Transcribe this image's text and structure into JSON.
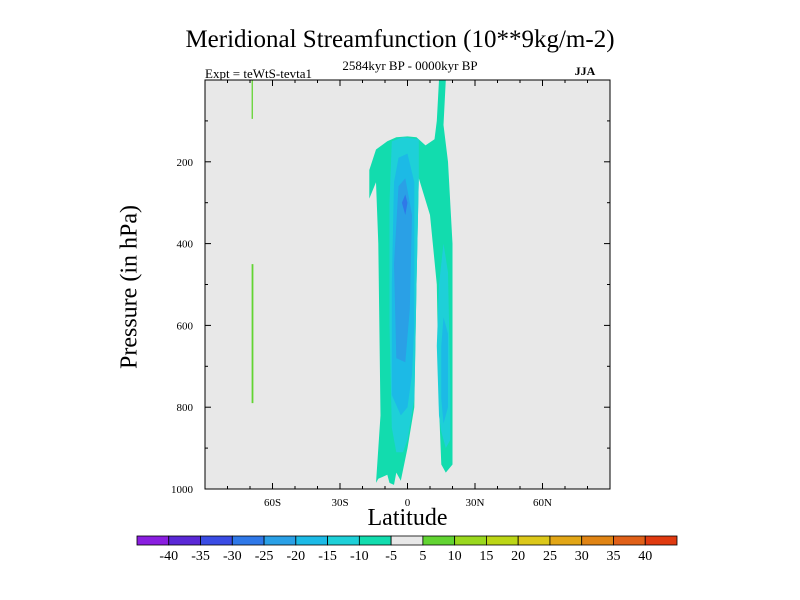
{
  "chart_data": {
    "type": "filled-contour",
    "title": "Meridional Streamfunction (10**9kg/m-2)",
    "subtitle_left": "Expt = teWtS-tevta1",
    "subtitle_center": "2584kyr BP - 0000kyr BP",
    "subtitle_right": "JJA",
    "xlabel": "Latitude",
    "ylabel": "Pressure (in hPa)",
    "xlim": [
      -90,
      90
    ],
    "ylim": [
      1000,
      0
    ],
    "xticks": [
      {
        "value": -60,
        "label": "60S"
      },
      {
        "value": -30,
        "label": "30S"
      },
      {
        "value": 0,
        "label": "0"
      },
      {
        "value": 30,
        "label": "30N"
      },
      {
        "value": 60,
        "label": "60N"
      }
    ],
    "yticks": [
      {
        "value": 200,
        "label": "200"
      },
      {
        "value": 400,
        "label": "400"
      },
      {
        "value": 600,
        "label": "600"
      },
      {
        "value": 800,
        "label": "800"
      },
      {
        "value": 1000,
        "label": "1000"
      }
    ],
    "background_color": "#e8e8e8",
    "colorbar": {
      "labels": [
        "-40",
        "-35",
        "-30",
        "-25",
        "-20",
        "-15",
        "-10",
        "-5",
        "5",
        "10",
        "15",
        "20",
        "25",
        "30",
        "35",
        "40"
      ],
      "colors": [
        "#8a1ee0",
        "#5a28d6",
        "#3a4ce4",
        "#2f78e8",
        "#2aa0e6",
        "#1cbae6",
        "#1ed0d8",
        "#12dcae",
        "#e8e8e8",
        "#62d432",
        "#9ad81e",
        "#bcd616",
        "#dcc81a",
        "#e2a616",
        "#e08414",
        "#e06018",
        "#e03a10"
      ]
    },
    "regions": [
      {
        "name": "negative-weak-envelope",
        "level": "-10 to -5",
        "points": [
          [
            -14,
            985
          ],
          [
            -12,
            820
          ],
          [
            -13,
            400
          ],
          [
            -14,
            250
          ],
          [
            -17,
            290
          ],
          [
            -17,
            220
          ],
          [
            -14,
            170
          ],
          [
            -9,
            150
          ],
          [
            -5,
            140
          ],
          [
            0,
            138
          ],
          [
            4,
            140
          ],
          [
            8,
            160
          ],
          [
            12,
            145
          ],
          [
            13,
            100
          ],
          [
            14,
            0
          ],
          [
            17,
            0
          ],
          [
            16,
            110
          ],
          [
            18,
            200
          ],
          [
            20,
            400
          ],
          [
            20,
            940
          ],
          [
            17,
            960
          ],
          [
            15,
            940
          ],
          [
            14,
            800
          ],
          [
            13,
            500
          ],
          [
            10,
            330
          ],
          [
            5,
            240
          ],
          [
            4,
            500
          ],
          [
            3,
            800
          ],
          [
            0,
            900
          ],
          [
            -3,
            980
          ],
          [
            -5,
            960
          ],
          [
            -6,
            990
          ],
          [
            -8,
            985
          ],
          [
            -9,
            965
          ],
          [
            -13,
            975
          ]
        ]
      },
      {
        "name": "negative-west-core-outer",
        "level": "-15 to -10",
        "points": [
          [
            -7,
            850
          ],
          [
            -8,
            600
          ],
          [
            -8,
            300
          ],
          [
            -7,
            150
          ],
          [
            -2,
            140
          ],
          [
            5,
            145
          ],
          [
            5,
            240
          ],
          [
            4,
            500
          ],
          [
            3,
            780
          ],
          [
            0,
            880
          ],
          [
            -2,
            910
          ],
          [
            -5,
            910
          ]
        ]
      },
      {
        "name": "negative-west-core-mid",
        "level": "-20 to -15",
        "points": [
          [
            -7,
            770
          ],
          [
            -7,
            500
          ],
          [
            -6,
            250
          ],
          [
            -4,
            190
          ],
          [
            0,
            180
          ],
          [
            3,
            250
          ],
          [
            3,
            600
          ],
          [
            2,
            720
          ],
          [
            0,
            800
          ],
          [
            -3,
            820
          ]
        ]
      },
      {
        "name": "negative-west-core-inner",
        "level": "-25 to -20",
        "points": [
          [
            -5,
            680
          ],
          [
            -6,
            450
          ],
          [
            -4,
            260
          ],
          [
            -1,
            240
          ],
          [
            2,
            330
          ],
          [
            1,
            560
          ],
          [
            -1,
            690
          ]
        ]
      },
      {
        "name": "negative-west-core-peak",
        "level": "-30 to -25",
        "points": [
          [
            -2.5,
            300
          ],
          [
            -1,
            280
          ],
          [
            0,
            300
          ],
          [
            -1,
            330
          ]
        ]
      },
      {
        "name": "negative-east-core-outer",
        "level": "-15 to -10",
        "points": [
          [
            13,
            650
          ],
          [
            14,
            500
          ],
          [
            16,
            400
          ],
          [
            18,
            470
          ],
          [
            19,
            750
          ],
          [
            19,
            880
          ],
          [
            17,
            900
          ],
          [
            15,
            860
          ],
          [
            14,
            820
          ]
        ]
      },
      {
        "name": "negative-east-core-inner",
        "level": "-20 to -15",
        "points": [
          [
            15,
            650
          ],
          [
            16,
            580
          ],
          [
            18,
            620
          ],
          [
            18,
            800
          ],
          [
            16,
            840
          ],
          [
            15,
            780
          ]
        ]
      },
      {
        "name": "positive-south-lower",
        "level": "5 to 10",
        "points": [
          [
            -69.3,
            450
          ],
          [
            -68.5,
            450
          ],
          [
            -68.5,
            790
          ],
          [
            -69.3,
            790
          ]
        ]
      },
      {
        "name": "positive-south-upper",
        "level": "5 to 10",
        "points": [
          [
            -69.3,
            0
          ],
          [
            -68.7,
            0
          ],
          [
            -68.7,
            95
          ],
          [
            -69.3,
            95
          ]
        ]
      }
    ]
  }
}
